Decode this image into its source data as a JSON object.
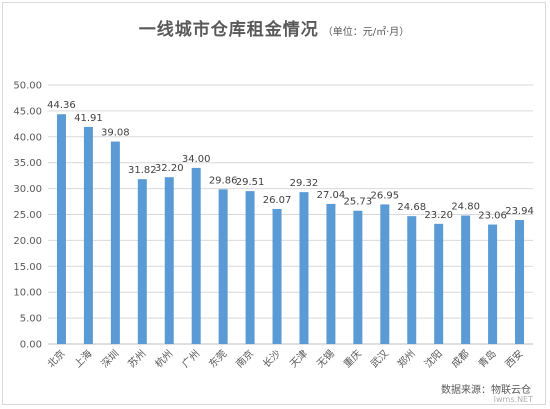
{
  "chart_data": {
    "type": "bar",
    "title": "一线城市仓库租金情况",
    "unit_note": "（单位：元/㎡·月）",
    "categories": [
      "北京",
      "上海",
      "深圳",
      "苏州",
      "杭州",
      "广州",
      "东莞",
      "南京",
      "长沙",
      "天津",
      "无锡",
      "重庆",
      "武汉",
      "郑州",
      "沈阳",
      "成都",
      "青岛",
      "西安"
    ],
    "series": [
      {
        "values": [
          44.36,
          41.91,
          39.08,
          31.82,
          32.2,
          34.0,
          29.86,
          29.51,
          26.07,
          29.32,
          27.04,
          25.73,
          26.95,
          24.68,
          23.2,
          24.8,
          23.06,
          23.94
        ]
      }
    ],
    "ylim": [
      0,
      50
    ],
    "yticks": [
      "0.00",
      "5.00",
      "10.00",
      "15.00",
      "20.00",
      "25.00",
      "30.00",
      "35.00",
      "40.00",
      "45.00",
      "50.00"
    ],
    "grid": true,
    "bar_color": "#5b9bd5",
    "data_labels": [
      "44.36",
      "41.91",
      "39.08",
      "31.82",
      "32.20",
      "34.00",
      "29.86",
      "29.51",
      "26.07",
      "29.32",
      "27.04",
      "25.73",
      "26.95",
      "24.68",
      "23.20",
      "24.80",
      "23.06",
      "23.94"
    ]
  },
  "footer": {
    "source": "数据来源：物联云仓",
    "watermark": "Iwms.NET"
  }
}
